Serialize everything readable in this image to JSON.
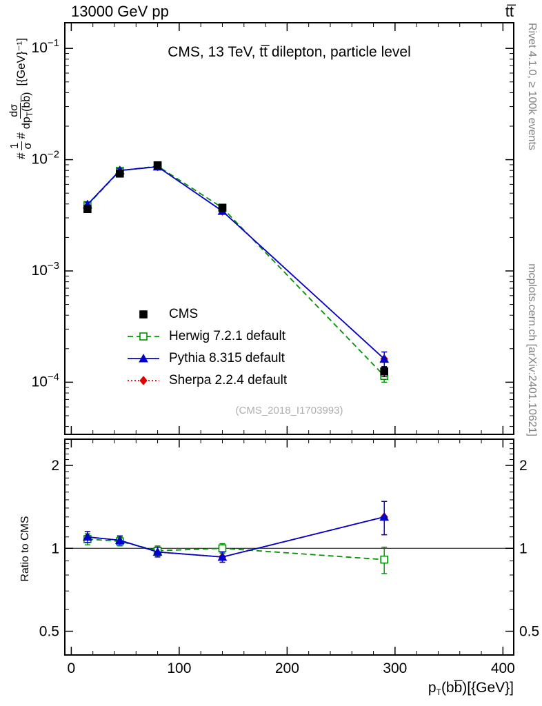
{
  "header": {
    "left": "13000 GeV pp",
    "right": "tt̅"
  },
  "main_panel": {
    "title": "CMS, 13 TeV, tt̅ dilepton, particle level",
    "watermark": "(CMS_2018_I1703993)",
    "ylabel": {
      "prefix": "#",
      "frac1_num": "1",
      "frac1_den": "σ",
      "mid": "#",
      "frac2_num": "dσ",
      "frac2_den_pre": "dp",
      "frac2_den_sub": "T",
      "frac2_den_post": "(bb̅)",
      "units": "[{GeV}⁻¹]"
    }
  },
  "ratio_panel": {
    "ylabel": "Ratio to CMS"
  },
  "xaxis": {
    "pre": "p",
    "sub": "T",
    "post": "(bb̅)[{GeV}]"
  },
  "side_notes": {
    "right_top": "Rivet 4.1.0, ≥ 100k events",
    "right_bottom": "mcplots.cern.ch [arXiv:2401.10621]"
  },
  "series_meta": {
    "order": [
      "CMS",
      "Herwig 7.2.1 default",
      "Pythia 8.315 default",
      "Sherpa 2.2.4 default"
    ],
    "styles": {
      "CMS": {
        "color": "#000000",
        "marker": "square",
        "fill": "filled",
        "line": "none"
      },
      "Herwig 7.2.1 default": {
        "color": "#009100",
        "marker": "square",
        "fill": "open",
        "line": "dashed"
      },
      "Pythia 8.315 default": {
        "color": "#0000cc",
        "marker": "triangle",
        "fill": "filled",
        "line": "solid"
      },
      "Sherpa 2.2.4 default": {
        "color": "#dd0000",
        "marker": "diamond",
        "fill": "filled",
        "line": "dotted"
      }
    }
  },
  "chart_data": [
    {
      "type": "line",
      "panel": "main",
      "title": "CMS, 13 TeV, ttbar dilepton, particle level",
      "xlabel": "p_T(bbbar) [{GeV}]",
      "ylabel": "#1/#sigma dsigma/dp_T(bbbar) [{GeV}^-1]",
      "yscale": "log",
      "xlim": [
        -6,
        410
      ],
      "ylim": [
        3.4e-05,
        0.17
      ],
      "xticks": [
        0,
        100,
        200,
        300,
        400
      ],
      "minor_step": 20,
      "yticks": [
        {
          "v": 0.1,
          "exp": "−1"
        },
        {
          "v": 0.01,
          "exp": "−2"
        },
        {
          "v": 0.001,
          "exp": "−3"
        },
        {
          "v": 0.0001,
          "exp": "−4"
        }
      ],
      "x": [
        15,
        45,
        80,
        140,
        290
      ],
      "series": [
        {
          "name": "Sherpa 2.2.4 default",
          "values": [
            0.00395,
            0.008,
            0.00865,
            0.00345,
            0.000162
          ],
          "yerr": [
            0.0002,
            0.0003,
            0.0003,
            0.00015,
            2.5e-05
          ]
        },
        {
          "name": "Herwig 7.2.1 default",
          "values": [
            0.0039,
            0.00795,
            0.00875,
            0.0037,
            0.000114
          ],
          "yerr": [
            0.0002,
            0.0003,
            0.0003,
            0.00015,
            1.4e-05
          ]
        },
        {
          "name": "Pythia 8.315 default",
          "values": [
            0.00395,
            0.008,
            0.00865,
            0.00345,
            0.000162
          ],
          "yerr": [
            0.0002,
            0.0003,
            0.0003,
            0.00015,
            2.5e-05
          ]
        },
        {
          "name": "CMS",
          "values": [
            0.0036,
            0.0075,
            0.0089,
            0.0037,
            0.000125
          ],
          "yerr": [
            0.00018,
            0.0003,
            0.0003,
            0.00015,
            1.3e-05
          ]
        }
      ]
    },
    {
      "type": "line",
      "panel": "ratio",
      "ylabel": "Ratio to CMS",
      "yscale": "log",
      "ylim": [
        0.41,
        2.49
      ],
      "ref_line": 1,
      "yticks": [
        {
          "v": 0.5,
          "label": "0.5"
        },
        {
          "v": 1,
          "label": "1"
        },
        {
          "v": 2,
          "label": "2"
        }
      ],
      "x": [
        15,
        45,
        80,
        140,
        290
      ],
      "series": [
        {
          "name": "Sherpa 2.2.4 default",
          "values": [
            1.1,
            1.07,
            0.97,
            0.93,
            1.3
          ],
          "yerr": [
            0.05,
            0.04,
            0.04,
            0.04,
            0.18
          ]
        },
        {
          "name": "Herwig 7.2.1 default",
          "values": [
            1.08,
            1.06,
            0.98,
            1.0,
            0.91
          ],
          "yerr": [
            0.05,
            0.04,
            0.04,
            0.04,
            0.1
          ]
        },
        {
          "name": "Pythia 8.315 default",
          "values": [
            1.1,
            1.07,
            0.97,
            0.93,
            1.3
          ],
          "yerr": [
            0.05,
            0.04,
            0.04,
            0.04,
            0.18
          ]
        }
      ]
    }
  ]
}
